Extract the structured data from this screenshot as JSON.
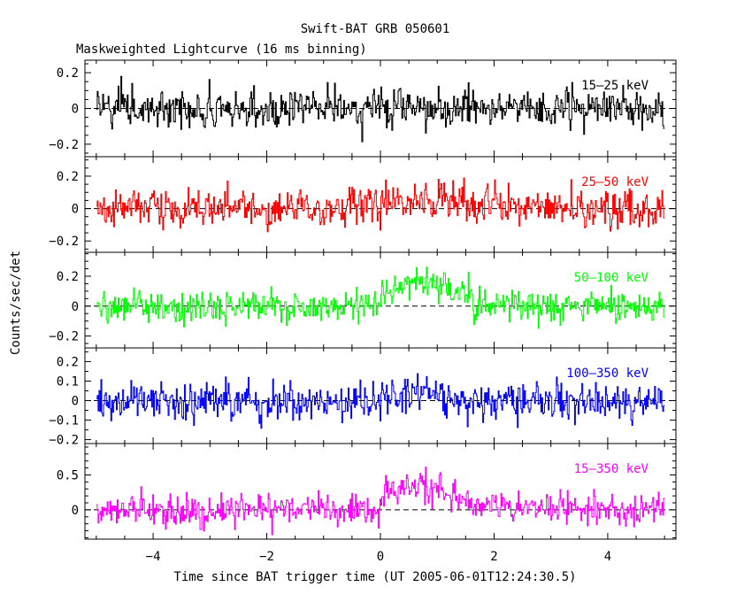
{
  "chart_data": {
    "type": "line",
    "title": "Swift-BAT GRB 050601",
    "subtitle": "Maskweighted Lightcurve (16 ms binning)",
    "xlabel": "Time since BAT trigger time (UT 2005-06-01T12:24:30.5)",
    "ylabel": "Counts/sec/det",
    "xlim": [
      -5.2,
      5.2
    ],
    "x_ticks": [
      "−4",
      "−2",
      "0",
      "2",
      "4"
    ],
    "x_tick_values": [
      -4,
      -2,
      0,
      2,
      4
    ],
    "x_range_data": [
      -5.0,
      5.0
    ],
    "binning_s": 0.016,
    "grid": false,
    "dashed_zero_line": true,
    "panels": [
      {
        "name": "15-25 keV",
        "label": "15–25 keV",
        "color": "#000000",
        "ylim": [
          -0.27,
          0.27
        ],
        "y_tick_values": [
          -0.2,
          0,
          0.2
        ],
        "y_ticks": [
          "−0.2",
          "0",
          "0.2"
        ],
        "noise_amplitude": 0.065,
        "peak": 0.0
      },
      {
        "name": "25-50 keV",
        "label": "25–50 keV",
        "color": "#ff0000",
        "ylim": [
          -0.27,
          0.32
        ],
        "y_tick_values": [
          -0.2,
          0,
          0.2
        ],
        "y_ticks": [
          "−0.2",
          "0",
          "0.2"
        ],
        "noise_amplitude": 0.07,
        "peak": 0.06
      },
      {
        "name": "50-100 keV",
        "label": "50–100 keV",
        "color": "#00ff00",
        "ylim": [
          -0.28,
          0.36
        ],
        "y_tick_values": [
          -0.2,
          0,
          0.2
        ],
        "y_ticks": [
          "−0.2",
          "0",
          "0.2"
        ],
        "noise_amplitude": 0.06,
        "peak": 0.17
      },
      {
        "name": "100-350 keV",
        "label": "100–350 keV",
        "color": "#0000ff",
        "ylim": [
          -0.22,
          0.27
        ],
        "y_tick_values": [
          -0.2,
          -0.1,
          0,
          0.1,
          0.2
        ],
        "y_ticks": [
          "−0.2",
          "−0.1",
          "0",
          "0.1",
          "0.2"
        ],
        "noise_amplitude": 0.055,
        "peak": 0.04
      },
      {
        "name": "15-350 keV",
        "label": "15–350 keV",
        "color": "#ff00ff",
        "ylim": [
          -0.42,
          0.95
        ],
        "y_tick_values": [
          0,
          0.5
        ],
        "y_ticks": [
          "0",
          "0.5"
        ],
        "noise_amplitude": 0.13,
        "peak": 0.35
      }
    ]
  }
}
